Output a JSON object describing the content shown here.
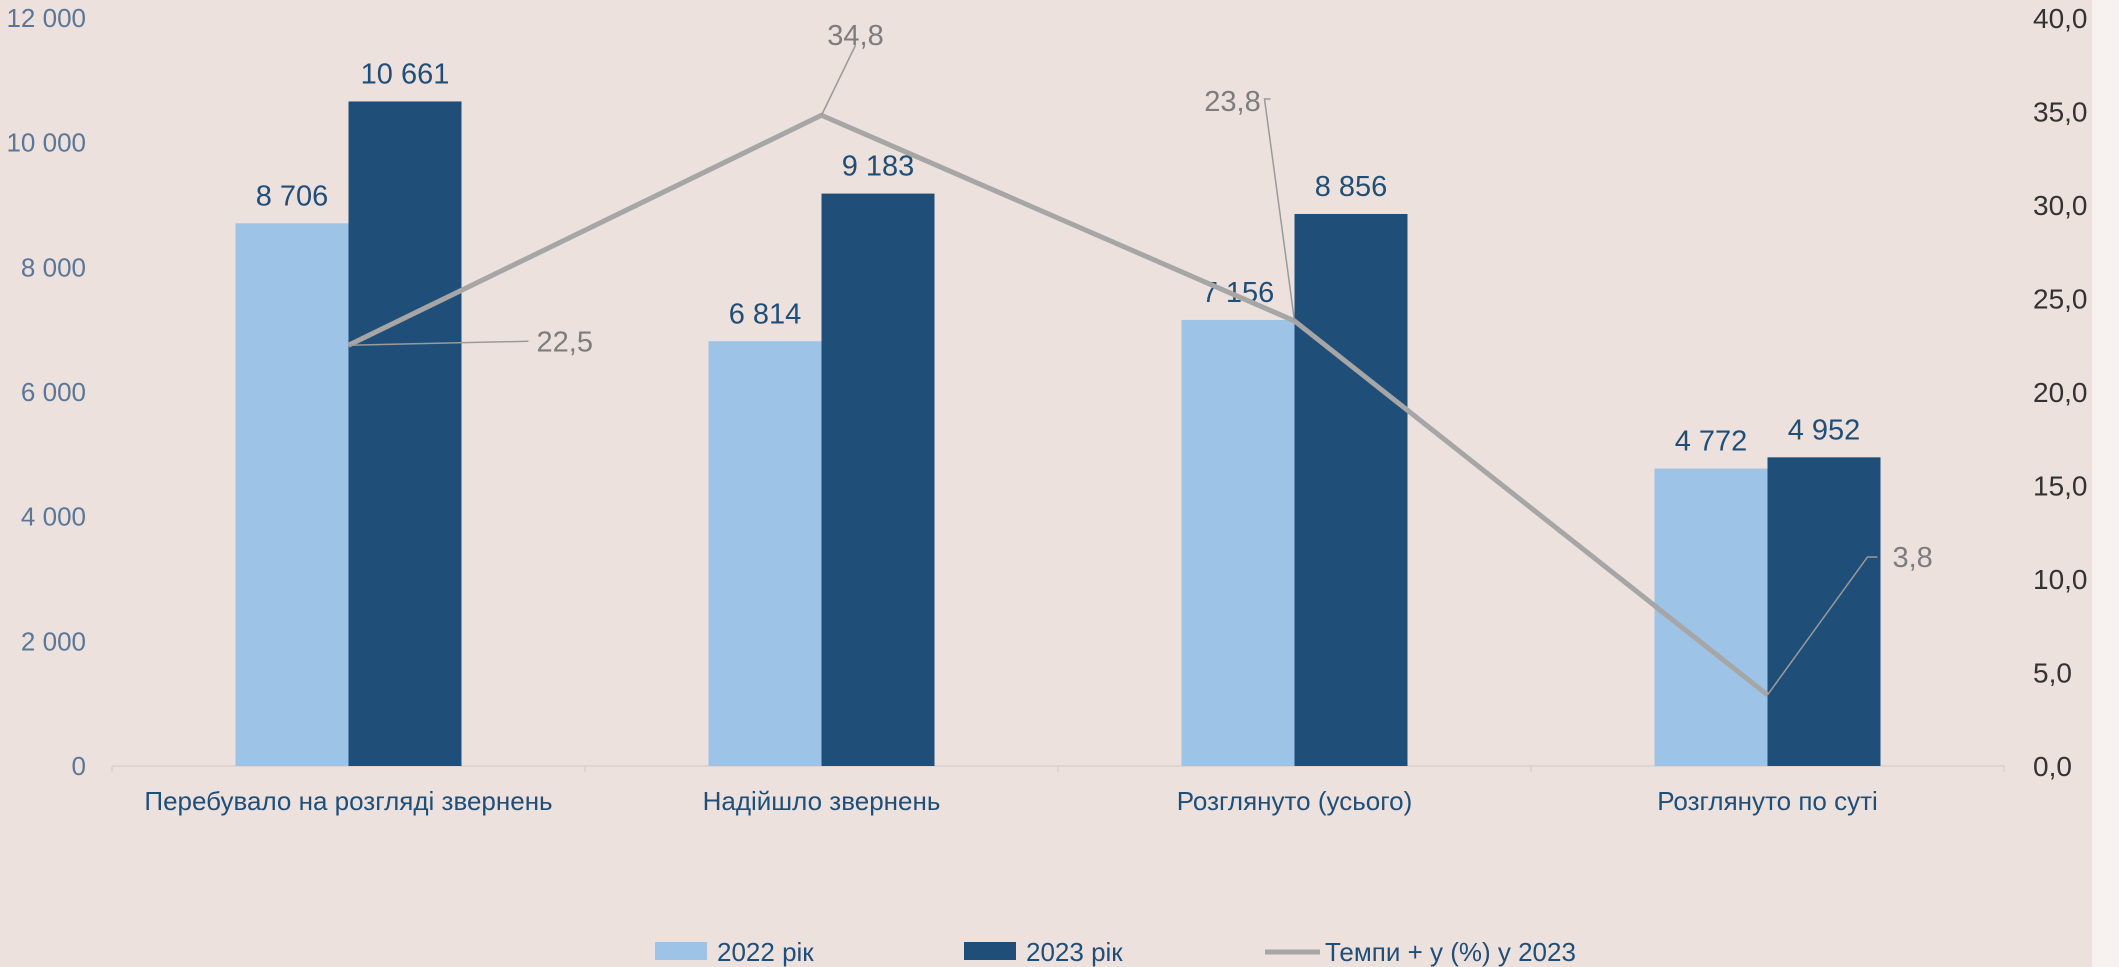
{
  "chart_data": {
    "type": "bar",
    "categories": [
      "Перебувало на розгляді звернень",
      "Надійшло звернень",
      "Розглянуто (усього)",
      "Розглянуто по суті"
    ],
    "series": [
      {
        "name": "2022 рік",
        "type": "bar",
        "axis": "left",
        "color": "#9dc3e6",
        "values": [
          8706,
          6814,
          7156,
          4772
        ],
        "labels": [
          "8 706",
          "6 814",
          "7 156",
          "4 772"
        ]
      },
      {
        "name": "2023 рік",
        "type": "bar",
        "axis": "left",
        "color": "#1f4e79",
        "values": [
          10661,
          9183,
          8856,
          4952
        ],
        "labels": [
          "10 661",
          "9 183",
          "8 856",
          "4 952"
        ]
      },
      {
        "name": "Темпи + у (%) у 2023",
        "type": "line",
        "axis": "right",
        "color": "#a6a6a6",
        "values": [
          22.5,
          34.8,
          23.8,
          3.8
        ],
        "labels": [
          "22,5",
          "34,8",
          "23,8",
          "3,8"
        ]
      }
    ],
    "yaxis_left": {
      "ylim": [
        0,
        12000
      ],
      "ticks": [
        0,
        2000,
        4000,
        6000,
        8000,
        10000,
        12000
      ],
      "tick_labels": [
        "0",
        "2 000",
        "4 000",
        "6 000",
        "8 000",
        "10 000",
        "12 000"
      ]
    },
    "yaxis_right": {
      "ylim": [
        0,
        40
      ],
      "ticks": [
        0,
        5,
        10,
        15,
        20,
        25,
        30,
        35,
        40
      ],
      "tick_labels": [
        "0,0",
        "5,0",
        "10,0",
        "15,0",
        "20,0",
        "25,0",
        "30,0",
        "35,0",
        "40,0"
      ]
    },
    "grid": false,
    "legend_position": "bottom",
    "title": "",
    "xlabel": "",
    "ylabel": ""
  }
}
